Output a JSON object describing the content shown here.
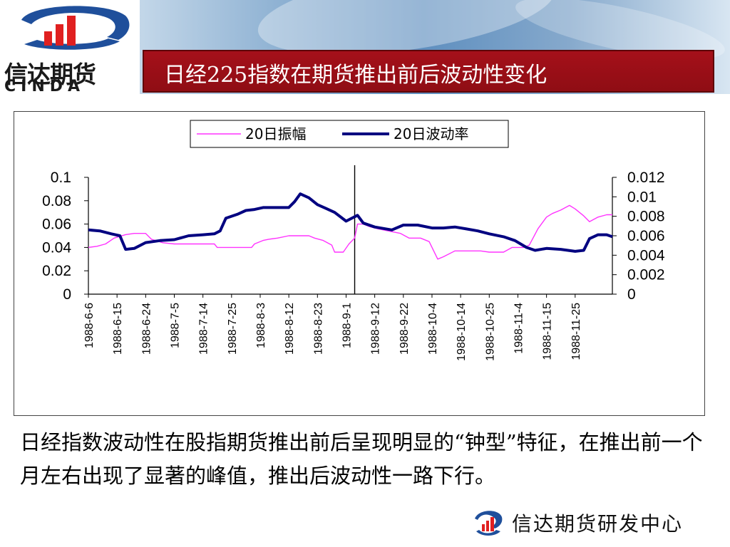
{
  "header": {
    "logo_cn": "信达期货",
    "logo_en": "CINDA",
    "title": "日经225指数在期货推出前后波动性变化"
  },
  "colors": {
    "title_bar": "#8f0d14",
    "series_amplitude": "#ff33ff",
    "series_volatility": "#000080",
    "logo_red": "#e02020",
    "logo_blue": "#1f4f9b"
  },
  "chart_data": {
    "type": "line",
    "title": "",
    "legend": [
      "20日振幅",
      "20日波动率"
    ],
    "legend_position": "top-center",
    "y_left": {
      "ticks": [
        "0",
        "0.02",
        "0.04",
        "0.06",
        "0.08",
        "0.1"
      ],
      "ylim": [
        0,
        0.1
      ]
    },
    "y_right": {
      "ticks": [
        "0",
        "0.002",
        "0.004",
        "0.006",
        "0.008",
        "0.01",
        "0.012"
      ],
      "ylim": [
        0,
        0.012
      ]
    },
    "x_ticks": [
      "1988-6-6",
      "1988-6-15",
      "1988-6-24",
      "1988-7-5",
      "1988-7-14",
      "1988-7-25",
      "1988-8-3",
      "1988-8-12",
      "1988-8-23",
      "1988-9-1",
      "1988-9-12",
      "1988-9-22",
      "1988-10-4",
      "1988-10-14",
      "1988-10-25",
      "1988-11-4",
      "1988-11-15",
      "1988-11-25"
    ],
    "event_line_label_index": 9.3,
    "series": [
      {
        "name": "20日振幅",
        "axis": "left",
        "points": [
          [
            0,
            0.04
          ],
          [
            0.3,
            0.041
          ],
          [
            0.6,
            0.043
          ],
          [
            0.9,
            0.048
          ],
          [
            1.3,
            0.051
          ],
          [
            1.6,
            0.052
          ],
          [
            2,
            0.052
          ],
          [
            2.2,
            0.047
          ],
          [
            2.6,
            0.044
          ],
          [
            3,
            0.043
          ],
          [
            3.5,
            0.043
          ],
          [
            4,
            0.043
          ],
          [
            4.4,
            0.043
          ],
          [
            4.5,
            0.04
          ],
          [
            5,
            0.04
          ],
          [
            5.4,
            0.04
          ],
          [
            5.7,
            0.04
          ],
          [
            5.8,
            0.043
          ],
          [
            6.1,
            0.046
          ],
          [
            6.3,
            0.047
          ],
          [
            6.6,
            0.048
          ],
          [
            7,
            0.05
          ],
          [
            7.4,
            0.05
          ],
          [
            7.7,
            0.05
          ],
          [
            7.9,
            0.048
          ],
          [
            8.2,
            0.046
          ],
          [
            8.5,
            0.042
          ],
          [
            8.6,
            0.036
          ],
          [
            8.9,
            0.036
          ],
          [
            9.1,
            0.043
          ],
          [
            9.3,
            0.048
          ],
          [
            9.4,
            0.06
          ],
          [
            9.6,
            0.06
          ],
          [
            9.8,
            0.058
          ],
          [
            10.1,
            0.056
          ],
          [
            10.5,
            0.054
          ],
          [
            10.9,
            0.052
          ],
          [
            11.2,
            0.048
          ],
          [
            11.6,
            0.048
          ],
          [
            11.9,
            0.045
          ],
          [
            12.2,
            0.03
          ],
          [
            12.4,
            0.032
          ],
          [
            12.8,
            0.037
          ],
          [
            13.3,
            0.037
          ],
          [
            13.7,
            0.037
          ],
          [
            14,
            0.036
          ],
          [
            14.5,
            0.036
          ],
          [
            14.8,
            0.04
          ],
          [
            15.2,
            0.04
          ],
          [
            15.4,
            0.042
          ],
          [
            15.7,
            0.056
          ],
          [
            16,
            0.066
          ],
          [
            16.2,
            0.069
          ],
          [
            16.5,
            0.072
          ],
          [
            16.8,
            0.076
          ],
          [
            17,
            0.073
          ],
          [
            17.3,
            0.067
          ],
          [
            17.5,
            0.062
          ],
          [
            17.8,
            0.066
          ],
          [
            18.1,
            0.068
          ],
          [
            18.3,
            0.068
          ]
        ]
      },
      {
        "name": "20日波动率",
        "axis": "right",
        "points": [
          [
            0,
            0.0066
          ],
          [
            0.4,
            0.0065
          ],
          [
            0.8,
            0.0062
          ],
          [
            1.1,
            0.006
          ],
          [
            1.3,
            0.0046
          ],
          [
            1.6,
            0.0047
          ],
          [
            2,
            0.0053
          ],
          [
            2.5,
            0.0055
          ],
          [
            3,
            0.0056
          ],
          [
            3.5,
            0.006
          ],
          [
            4,
            0.0061
          ],
          [
            4.4,
            0.0062
          ],
          [
            4.6,
            0.0065
          ],
          [
            4.8,
            0.0078
          ],
          [
            5.2,
            0.0082
          ],
          [
            5.5,
            0.0086
          ],
          [
            5.8,
            0.0087
          ],
          [
            6.1,
            0.0089
          ],
          [
            6.6,
            0.0089
          ],
          [
            7,
            0.0089
          ],
          [
            7.2,
            0.0095
          ],
          [
            7.4,
            0.0103
          ],
          [
            7.7,
            0.0099
          ],
          [
            8,
            0.0092
          ],
          [
            8.3,
            0.0088
          ],
          [
            8.6,
            0.0084
          ],
          [
            9,
            0.0075
          ],
          [
            9.2,
            0.0078
          ],
          [
            9.4,
            0.0081
          ],
          [
            9.6,
            0.0073
          ],
          [
            10,
            0.0069
          ],
          [
            10.6,
            0.0066
          ],
          [
            11,
            0.0071
          ],
          [
            11.5,
            0.0071
          ],
          [
            12,
            0.0068
          ],
          [
            12.4,
            0.0068
          ],
          [
            12.8,
            0.0069
          ],
          [
            13.2,
            0.0067
          ],
          [
            13.6,
            0.0065
          ],
          [
            14,
            0.0062
          ],
          [
            14.5,
            0.0059
          ],
          [
            14.9,
            0.0055
          ],
          [
            15.3,
            0.0048
          ],
          [
            15.6,
            0.0045
          ],
          [
            16,
            0.0047
          ],
          [
            16.5,
            0.0046
          ],
          [
            17,
            0.0044
          ],
          [
            17.3,
            0.0045
          ],
          [
            17.5,
            0.0057
          ],
          [
            17.8,
            0.0061
          ],
          [
            18.1,
            0.0061
          ],
          [
            18.3,
            0.0059
          ]
        ]
      }
    ],
    "grid": false
  },
  "summary": {
    "text": "日经指数波动性在股指期货推出前后呈现明显的“钟型”特征，在推出前一个月左右出现了显著的峰值，推出后波动性一路下行。"
  },
  "footer": {
    "text": "信达期货研发中心"
  }
}
